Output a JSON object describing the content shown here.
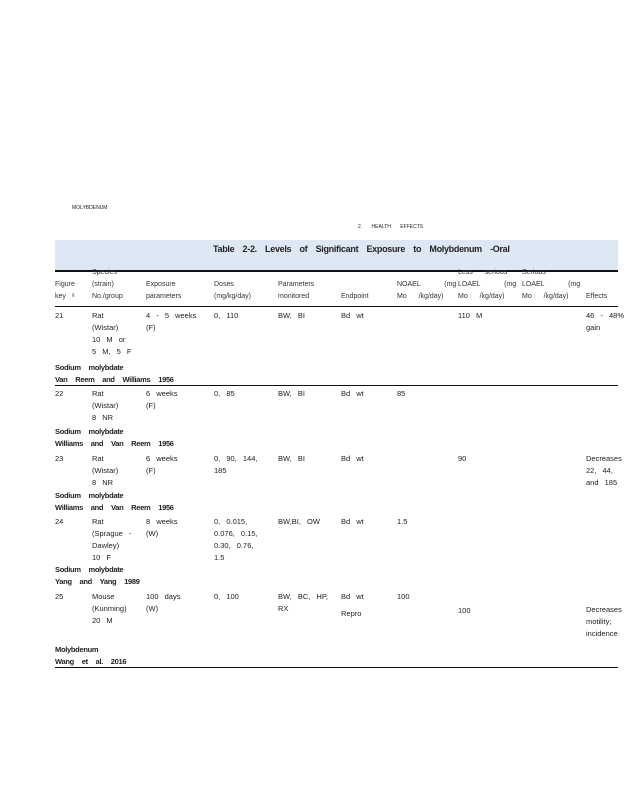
{
  "running_header_left": "MOLYBDENUM",
  "running_header_right": "2. HEALTH EFFECTS",
  "table_title": "Table 2-2. Levels of Significant Exposure to Molybdenum -Oral",
  "columns": [
    "Figure key ᵃ",
    "Species (strain) No./group",
    "Exposure parameters",
    "Doses (mg/kg/day)",
    "Parameters monitored",
    "Endpoint",
    "NOAEL (mg Mo /kg/day)",
    "Less serious LOAEL (mg Mo /kg/day)",
    "Serious LOAEL (mg Mo /kg/day)",
    "Effects"
  ],
  "rows": [
    {
      "key": "21",
      "species": "Rat\n(Wistar)\n10 M or\n5 M, 5 F",
      "exposure": "4 - 5 weeks\n(F)",
      "doses": "0, 110",
      "params": "BW, BI",
      "endpoint": "Bd wt",
      "noael": "",
      "less": "110 M",
      "serious": "",
      "effects": "46 - 48%\ngain",
      "citation1": "Sodium molybdate",
      "citation2": "Van Reem and Williams 1956"
    },
    {
      "key": "22",
      "species": "Rat\n(Wistar)\n8 NR",
      "exposure": "6 weeks\n(F)",
      "doses": "0, 85",
      "params": "BW, BI",
      "endpoint": "Bd wt",
      "noael": "85",
      "less": "",
      "serious": "",
      "effects": "",
      "citation1": "Sodium molybdate",
      "citation2": "Williams and Van Reem 1956"
    },
    {
      "key": "23",
      "species": "Rat\n(Wistar)\n8 NR",
      "exposure": "6 weeks\n(F)",
      "doses": "0, 90, 144,\n185",
      "params": "BW, BI",
      "endpoint": "Bd wt",
      "noael": "",
      "less": "90",
      "serious": "",
      "effects": "Decreases\n22, 44,\nand 185",
      "citation1": "Sodium molybdate",
      "citation2": "Williams and Van Reem 1956"
    },
    {
      "key": "24",
      "species": "Rat\n(Sprague -\nDawley)\n10 F",
      "exposure": "8 weeks\n(W)",
      "doses": "0, 0.015,\n0.076, 0.15,\n0.30, 0.76,\n1.5",
      "params": "BW,BI, OW",
      "endpoint": "Bd wt",
      "noael": "1.5",
      "less": "",
      "serious": "",
      "effects": "",
      "citation1": "Sodium molybdate",
      "citation2": "Yang and Yang 1989"
    },
    {
      "key": "25",
      "species": "Mouse\n(Kunming)\n20 M",
      "exposure": "100 days\n(W)",
      "doses": "0, 100",
      "params": "BW, BC, HP,\nRX",
      "endpoint": "Bd wt",
      "noael": "100",
      "less": "",
      "serious": "",
      "effects": "",
      "endpoint2": "Repro",
      "less2": "100",
      "effects2": "Decreases\nmotility;\nincidence",
      "citation1": "Molybdenum",
      "citation2": "Wang et al. 2016"
    }
  ]
}
